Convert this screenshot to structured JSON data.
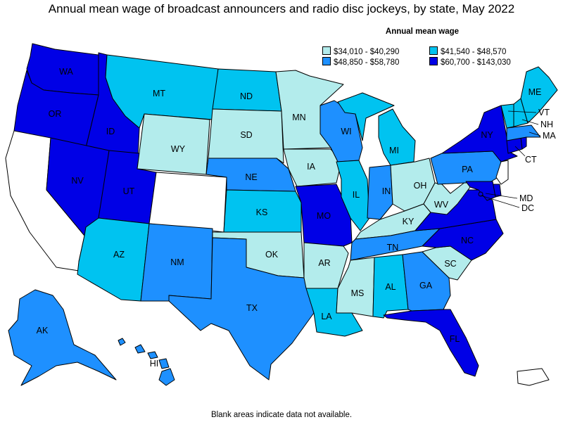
{
  "title": "Annual mean wage of broadcast announcers and radio disc jockeys, by state, May 2022",
  "legend": {
    "title": "Annual mean wage",
    "items": [
      {
        "range": "$34,010 - $40,290",
        "color": "#b3ecec"
      },
      {
        "range": "$41,540 - $48,570",
        "color": "#00c3f0"
      },
      {
        "range": "$48,850 - $58,780",
        "color": "#1e90ff"
      },
      {
        "range": "$60,700 - $143,030",
        "color": "#0000e6"
      }
    ]
  },
  "footnote": "Blank areas indicate data not available.",
  "states": {
    "WA": {
      "label": "WA",
      "bin": 3
    },
    "OR": {
      "label": "OR",
      "bin": 3
    },
    "CA": {
      "label": "",
      "bin": null
    },
    "ID": {
      "label": "ID",
      "bin": 3
    },
    "NV": {
      "label": "NV",
      "bin": 3
    },
    "UT": {
      "label": "UT",
      "bin": 3
    },
    "AZ": {
      "label": "AZ",
      "bin": 1
    },
    "MT": {
      "label": "MT",
      "bin": 1
    },
    "WY": {
      "label": "WY",
      "bin": 0
    },
    "CO": {
      "label": "",
      "bin": null
    },
    "NM": {
      "label": "NM",
      "bin": 2
    },
    "ND": {
      "label": "ND",
      "bin": 1
    },
    "SD": {
      "label": "SD",
      "bin": 0
    },
    "NE": {
      "label": "NE",
      "bin": 2
    },
    "KS": {
      "label": "KS",
      "bin": 1
    },
    "OK": {
      "label": "OK",
      "bin": 0
    },
    "TX": {
      "label": "TX",
      "bin": 2
    },
    "MN": {
      "label": "MN",
      "bin": 0
    },
    "IA": {
      "label": "IA",
      "bin": 0
    },
    "MO": {
      "label": "MO",
      "bin": 3
    },
    "AR": {
      "label": "AR",
      "bin": 0
    },
    "LA": {
      "label": "LA",
      "bin": 1
    },
    "WI": {
      "label": "WI",
      "bin": 2
    },
    "IL": {
      "label": "IL",
      "bin": 1
    },
    "MI": {
      "label": "MI",
      "bin": 1
    },
    "IN": {
      "label": "IN",
      "bin": 2
    },
    "OH": {
      "label": "OH",
      "bin": 0
    },
    "KY": {
      "label": "KY",
      "bin": 0
    },
    "TN": {
      "label": "TN",
      "bin": 2
    },
    "MS": {
      "label": "MS",
      "bin": 0
    },
    "AL": {
      "label": "AL",
      "bin": 1
    },
    "GA": {
      "label": "GA",
      "bin": 2
    },
    "FL": {
      "label": "FL",
      "bin": 3
    },
    "SC": {
      "label": "SC",
      "bin": 0
    },
    "NC": {
      "label": "NC",
      "bin": 3
    },
    "VA": {
      "label": "",
      "bin": 3
    },
    "WV": {
      "label": "WV",
      "bin": 0
    },
    "PA": {
      "label": "PA",
      "bin": 2
    },
    "NY": {
      "label": "NY",
      "bin": 3
    },
    "VT": {
      "label": "VT",
      "bin": 1
    },
    "NH": {
      "label": "NH",
      "bin": 1
    },
    "ME": {
      "label": "ME",
      "bin": 1
    },
    "MA": {
      "label": "MA",
      "bin": 2
    },
    "CT": {
      "label": "CT",
      "bin": 3
    },
    "RI": {
      "label": "",
      "bin": 3
    },
    "NJ": {
      "label": "",
      "bin": null
    },
    "DE": {
      "label": "",
      "bin": 3
    },
    "MD": {
      "label": "MD",
      "bin": 3
    },
    "DC": {
      "label": "DC",
      "bin": 3
    },
    "AK": {
      "label": "AK",
      "bin": 2
    },
    "HI": {
      "label": "HI",
      "bin": 2
    },
    "PR": {
      "label": "",
      "bin": null
    }
  }
}
